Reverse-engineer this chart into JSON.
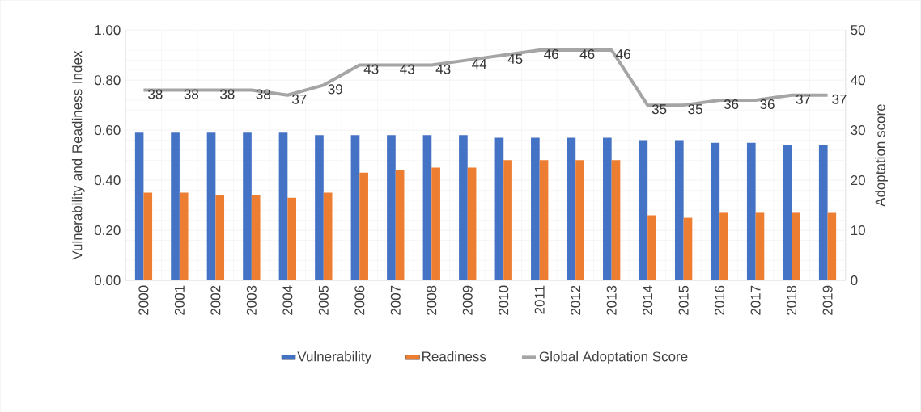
{
  "chart_data": {
    "type": "bar",
    "categories": [
      "2000",
      "2001",
      "2002",
      "2003",
      "2004",
      "2005",
      "2006",
      "2007",
      "2008",
      "2009",
      "2010",
      "2011",
      "2012",
      "2013",
      "2014",
      "2015",
      "2016",
      "2017",
      "2018",
      "2019"
    ],
    "series": [
      {
        "name": "Vulnerability",
        "color": "#4472c4",
        "values": [
          0.59,
          0.59,
          0.59,
          0.59,
          0.59,
          0.58,
          0.58,
          0.58,
          0.58,
          0.58,
          0.57,
          0.57,
          0.57,
          0.57,
          0.56,
          0.56,
          0.55,
          0.55,
          0.54,
          0.54
        ]
      },
      {
        "name": "Readiness",
        "color": "#ed7d31",
        "values": [
          0.35,
          0.35,
          0.34,
          0.34,
          0.33,
          0.35,
          0.43,
          0.44,
          0.45,
          0.45,
          0.48,
          0.48,
          0.48,
          0.48,
          0.26,
          0.25,
          0.27,
          0.27,
          0.27,
          0.27
        ]
      },
      {
        "name": "Global Adoptation Score",
        "color": "#a5a5a5",
        "type": "line",
        "axis": "y2",
        "data_labels": true,
        "values": [
          38,
          38,
          38,
          38,
          37,
          39,
          43,
          43,
          43,
          44,
          45,
          46,
          46,
          46,
          35,
          35,
          36,
          36,
          37,
          37
        ]
      }
    ],
    "ylabel": "Vulnerability and Readiness Index",
    "y2label": "Adoptation score",
    "ylim": [
      0,
      1
    ],
    "yticks": [
      {
        "value": 0,
        "label": "0.00"
      },
      {
        "value": 0.2,
        "label": "0.20"
      },
      {
        "value": 0.4,
        "label": "0.40"
      },
      {
        "value": 0.6,
        "label": "0.60"
      },
      {
        "value": 0.8,
        "label": "0.80"
      },
      {
        "value": 1,
        "label": "1.00"
      }
    ],
    "y2lim": [
      0,
      50
    ],
    "y2ticks": [
      0,
      10,
      20,
      30,
      40,
      50
    ],
    "grid": true,
    "legend": "bottom"
  }
}
